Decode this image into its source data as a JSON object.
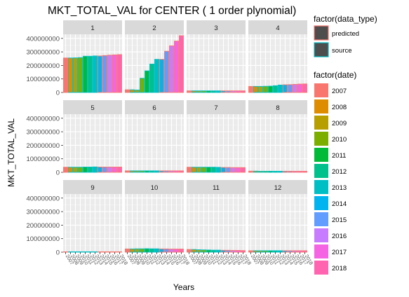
{
  "chart_data": {
    "type": "bar",
    "title": "MKT_TOTAL_VAL for CENTER ( 1  order plynomial)",
    "xlabel": "Years",
    "ylabel": "MKT_TOTAL_VAL",
    "ylim": [
      0,
      430000000
    ],
    "yticks": [
      {
        "value": 0,
        "label": "0"
      },
      {
        "value": 100000000,
        "label": "100000000"
      },
      {
        "value": 200000000,
        "label": "200000000"
      },
      {
        "value": 300000000,
        "label": "300000000"
      },
      {
        "value": 400000000,
        "label": "400000000"
      }
    ],
    "grid": true,
    "facet_layout": "3x4",
    "x_tick_labels": [
      "2007",
      "2008",
      "2009",
      "2010",
      "2011",
      "2012",
      "2013",
      "2014",
      "2015",
      "2016",
      "2017",
      "2018"
    ],
    "categories": [
      "2007",
      "2008",
      "2009",
      "2010",
      "2011",
      "2012",
      "2013",
      "2014",
      "2015",
      "2016",
      "2017",
      "2018"
    ],
    "date_colors": {
      "2007": "#F8766D",
      "2008": "#DE8C00",
      "2009": "#B79F00",
      "2010": "#7CAE00",
      "2011": "#00BA38",
      "2012": "#00C08B",
      "2013": "#00BFC4",
      "2014": "#00B4F0",
      "2015": "#619CFF",
      "2016": "#C77CFF",
      "2017": "#F564E3",
      "2018": "#FF64B0"
    },
    "data_type_by_year": [
      "predicted",
      "source",
      "source",
      "source",
      "source",
      "source",
      "source",
      "predicted",
      "predicted",
      "predicted",
      "predicted",
      "predicted"
    ],
    "data_type_colors": {
      "predicted": "#F8766D",
      "source": "#00BFC4"
    },
    "panels": [
      {
        "label": "1",
        "values": [
          255000000,
          255000000,
          256000000,
          258000000,
          268000000,
          268000000,
          270000000,
          270000000,
          273000000,
          276000000,
          278000000,
          280000000
        ]
      },
      {
        "label": "2",
        "values": [
          20000000,
          20000000,
          18000000,
          105000000,
          160000000,
          210000000,
          245000000,
          245000000,
          305000000,
          345000000,
          380000000,
          420000000
        ]
      },
      {
        "label": "3",
        "values": [
          12000000,
          12000000,
          12000000,
          12000000,
          12000000,
          12000000,
          12000000,
          12000000,
          12000000,
          12000000,
          12000000,
          12000000
        ]
      },
      {
        "label": "4",
        "values": [
          45000000,
          45000000,
          45000000,
          46000000,
          47000000,
          50000000,
          55000000,
          57000000,
          58000000,
          60000000,
          62000000,
          63000000
        ]
      },
      {
        "label": "5",
        "values": [
          38000000,
          38000000,
          38000000,
          38000000,
          39000000,
          39000000,
          40000000,
          39000000,
          39000000,
          39000000,
          39000000,
          39000000
        ]
      },
      {
        "label": "6",
        "values": [
          11000000,
          11000000,
          11000000,
          11000000,
          11000000,
          11000000,
          11000000,
          11000000,
          11000000,
          11000000,
          11000000,
          11000000
        ]
      },
      {
        "label": "7",
        "values": [
          38000000,
          38000000,
          38000000,
          38000000,
          38000000,
          38000000,
          37000000,
          36000000,
          36000000,
          35000000,
          35000000,
          35000000
        ]
      },
      {
        "label": "8",
        "values": [
          9000000,
          9000000,
          8000000,
          8000000,
          8000000,
          8000000,
          8000000,
          8000000,
          8000000,
          8000000,
          8000000,
          8000000
        ]
      },
      {
        "label": "9",
        "values": [
          3000000,
          3000000,
          3000000,
          3000000,
          3000000,
          3000000,
          3000000,
          3000000,
          3000000,
          3000000,
          3000000,
          3000000
        ]
      },
      {
        "label": "10",
        "values": [
          24000000,
          24000000,
          25000000,
          25000000,
          26000000,
          25000000,
          25000000,
          24000000,
          24000000,
          23000000,
          23000000,
          23000000
        ]
      },
      {
        "label": "11",
        "values": [
          20000000,
          20000000,
          18000000,
          17000000,
          16000000,
          15000000,
          15000000,
          14000000,
          14000000,
          13000000,
          13000000,
          12000000
        ]
      },
      {
        "label": "12",
        "values": [
          11000000,
          11000000,
          11000000,
          11000000,
          11000000,
          11000000,
          11000000,
          11000000,
          11000000,
          11000000,
          11000000,
          11000000
        ]
      }
    ],
    "legend": {
      "placement": "right",
      "data_type_title": "factor(data_type)",
      "data_type_items": [
        {
          "label": "predicted",
          "color": "#F8766D"
        },
        {
          "label": "source",
          "color": "#00BFC4"
        }
      ],
      "date_title": "factor(date)",
      "date_items": [
        {
          "label": "2007",
          "color": "#F8766D"
        },
        {
          "label": "2008",
          "color": "#DE8C00"
        },
        {
          "label": "2009",
          "color": "#B79F00"
        },
        {
          "label": "2010",
          "color": "#7CAE00"
        },
        {
          "label": "2011",
          "color": "#00BA38"
        },
        {
          "label": "2012",
          "color": "#00C08B"
        },
        {
          "label": "2013",
          "color": "#00BFC4"
        },
        {
          "label": "2014",
          "color": "#00B4F0"
        },
        {
          "label": "2015",
          "color": "#619CFF"
        },
        {
          "label": "2016",
          "color": "#C77CFF"
        },
        {
          "label": "2017",
          "color": "#F564E3"
        },
        {
          "label": "2018",
          "color": "#FF64B0"
        }
      ]
    }
  }
}
